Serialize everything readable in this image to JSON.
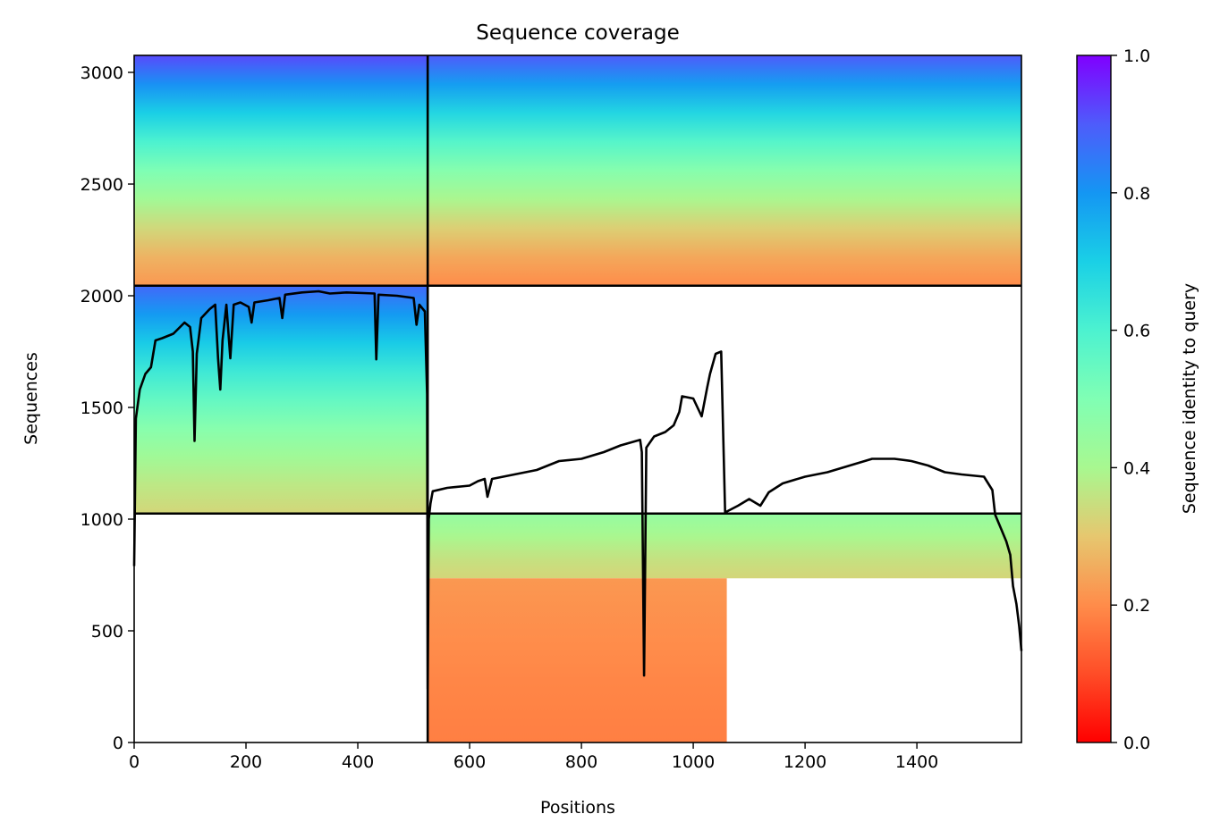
{
  "chart_data": {
    "type": "heatmap",
    "title": "Sequence coverage",
    "xlabel": "Positions",
    "ylabel": "Sequences",
    "xlim": [
      0,
      1587
    ],
    "ylim": [
      0,
      3076
    ],
    "x_ticks": [
      0,
      200,
      400,
      600,
      800,
      1000,
      1200,
      1400
    ],
    "y_ticks": [
      0,
      500,
      1000,
      1500,
      2000,
      2500,
      3000
    ],
    "colorbar": {
      "label": "Sequence identity to query",
      "range": [
        0.0,
        1.0
      ],
      "ticks": [
        "0.0",
        "0.2",
        "0.4",
        "0.6",
        "0.8",
        "1.0"
      ],
      "colormap": "rainbow_r"
    },
    "block_boundaries": {
      "x": [
        0,
        525,
        1587
      ],
      "y": [
        0,
        1025,
        2045,
        3076
      ]
    },
    "coverage_blocks": [
      {
        "x": [
          0,
          525
        ],
        "y": [
          1025,
          2045
        ],
        "identity_bottom": 0.33,
        "identity_top": 0.88
      },
      {
        "x": [
          0,
          525
        ],
        "y": [
          2045,
          3076
        ],
        "identity_bottom": 0.22,
        "identity_top": 0.92
      },
      {
        "x": [
          525,
          1587
        ],
        "y": [
          2045,
          3076
        ],
        "identity_bottom": 0.2,
        "identity_top": 0.9
      },
      {
        "x": [
          525,
          1587
        ],
        "y": [
          735,
          1025
        ],
        "identity_bottom": 0.33,
        "identity_top": 0.45
      },
      {
        "x": [
          525,
          1060
        ],
        "y": [
          0,
          735
        ],
        "identity_bottom": 0.18,
        "identity_top": 0.22
      }
    ],
    "coverage_line": {
      "color": "#000000",
      "points": [
        [
          0,
          790
        ],
        [
          3,
          1450
        ],
        [
          10,
          1580
        ],
        [
          20,
          1650
        ],
        [
          30,
          1680
        ],
        [
          38,
          1800
        ],
        [
          50,
          1810
        ],
        [
          70,
          1830
        ],
        [
          90,
          1880
        ],
        [
          100,
          1860
        ],
        [
          105,
          1750
        ],
        [
          108,
          1350
        ],
        [
          112,
          1740
        ],
        [
          120,
          1900
        ],
        [
          135,
          1940
        ],
        [
          145,
          1960
        ],
        [
          150,
          1720
        ],
        [
          154,
          1580
        ],
        [
          158,
          1800
        ],
        [
          165,
          1960
        ],
        [
          172,
          1720
        ],
        [
          178,
          1960
        ],
        [
          190,
          1970
        ],
        [
          205,
          1950
        ],
        [
          210,
          1880
        ],
        [
          215,
          1970
        ],
        [
          240,
          1980
        ],
        [
          260,
          1990
        ],
        [
          265,
          1900
        ],
        [
          270,
          2005
        ],
        [
          300,
          2015
        ],
        [
          330,
          2020
        ],
        [
          350,
          2010
        ],
        [
          380,
          2015
        ],
        [
          410,
          2012
        ],
        [
          430,
          2010
        ],
        [
          433,
          1715
        ],
        [
          437,
          2005
        ],
        [
          470,
          2000
        ],
        [
          500,
          1990
        ],
        [
          505,
          1870
        ],
        [
          510,
          1960
        ],
        [
          520,
          1930
        ],
        [
          524,
          1560
        ],
        [
          525,
          240
        ],
        [
          527,
          1000
        ],
        [
          530,
          1070
        ],
        [
          534,
          1125
        ],
        [
          560,
          1140
        ],
        [
          600,
          1150
        ],
        [
          615,
          1170
        ],
        [
          627,
          1180
        ],
        [
          632,
          1100
        ],
        [
          640,
          1180
        ],
        [
          680,
          1200
        ],
        [
          720,
          1220
        ],
        [
          760,
          1260
        ],
        [
          800,
          1270
        ],
        [
          840,
          1300
        ],
        [
          870,
          1330
        ],
        [
          905,
          1355
        ],
        [
          908,
          1300
        ],
        [
          912,
          300
        ],
        [
          916,
          1320
        ],
        [
          930,
          1370
        ],
        [
          950,
          1390
        ],
        [
          965,
          1420
        ],
        [
          975,
          1480
        ],
        [
          980,
          1550
        ],
        [
          1000,
          1540
        ],
        [
          1015,
          1460
        ],
        [
          1025,
          1590
        ],
        [
          1030,
          1650
        ],
        [
          1040,
          1740
        ],
        [
          1050,
          1750
        ],
        [
          1057,
          1030
        ],
        [
          1080,
          1060
        ],
        [
          1100,
          1090
        ],
        [
          1120,
          1060
        ],
        [
          1135,
          1120
        ],
        [
          1160,
          1160
        ],
        [
          1200,
          1190
        ],
        [
          1240,
          1210
        ],
        [
          1280,
          1240
        ],
        [
          1320,
          1270
        ],
        [
          1360,
          1270
        ],
        [
          1390,
          1260
        ],
        [
          1420,
          1240
        ],
        [
          1450,
          1210
        ],
        [
          1480,
          1200
        ],
        [
          1520,
          1190
        ],
        [
          1535,
          1130
        ],
        [
          1540,
          1020
        ],
        [
          1550,
          960
        ],
        [
          1560,
          900
        ],
        [
          1567,
          840
        ],
        [
          1572,
          700
        ],
        [
          1578,
          620
        ],
        [
          1583,
          520
        ],
        [
          1587,
          410
        ]
      ]
    }
  }
}
